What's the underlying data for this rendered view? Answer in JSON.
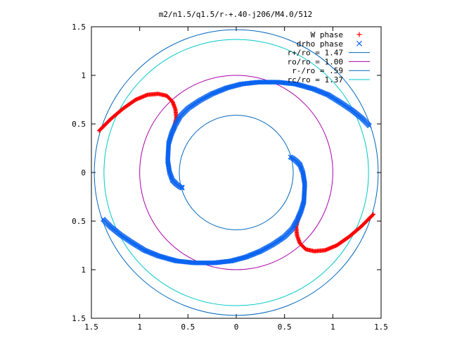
{
  "chart_data": {
    "type": "scatter",
    "title": "m2/n1.5/q1.5/r-+.40-j206/M4.0/512",
    "xlabel": "",
    "ylabel": "",
    "xlim": [
      -1.5,
      1.5
    ],
    "ylim": [
      -1.5,
      1.5
    ],
    "x_ticks": [
      {
        "value": -1.5,
        "label": "1.5"
      },
      {
        "value": -1,
        "label": "1"
      },
      {
        "value": -0.5,
        "label": "0.5"
      },
      {
        "value": 0,
        "label": "0"
      },
      {
        "value": 0.5,
        "label": "0.5"
      },
      {
        "value": 1,
        "label": "1"
      },
      {
        "value": 1.5,
        "label": "1.5"
      }
    ],
    "y_ticks": [
      {
        "value": 1.5,
        "label": "1.5"
      },
      {
        "value": 1,
        "label": "1"
      },
      {
        "value": 0.5,
        "label": "0.5"
      },
      {
        "value": 0,
        "label": "0"
      },
      {
        "value": -0.5,
        "label": "0.5"
      },
      {
        "value": -1,
        "label": "1"
      },
      {
        "value": -1.5,
        "label": "1.5"
      }
    ],
    "grid": false,
    "legend_position": "top-right",
    "series": [
      {
        "name": "W phase",
        "marker": "plus",
        "color": "#ff0000",
        "x": [
          -1.42,
          -1.3,
          -1.17,
          -1.04,
          -0.92,
          -0.81,
          -0.72,
          -0.66,
          -0.63,
          -0.62,
          -0.64,
          -0.65
        ],
        "y": [
          0.43,
          0.55,
          0.66,
          0.75,
          0.8,
          0.81,
          0.79,
          0.73,
          0.65,
          0.56,
          0.48,
          0.44
        ]
      },
      {
        "name": "",
        "marker": "plus",
        "color": "#ff0000",
        "x": [
          1.42,
          1.3,
          1.17,
          1.04,
          0.92,
          0.81,
          0.72,
          0.66,
          0.63,
          0.62,
          0.64,
          0.65
        ],
        "y": [
          -0.43,
          -0.55,
          -0.66,
          -0.75,
          -0.8,
          -0.81,
          -0.79,
          -0.73,
          -0.65,
          -0.56,
          -0.48,
          -0.44
        ]
      },
      {
        "name": "drho phase",
        "marker": "cross",
        "color": "#0a64f0",
        "x": [
          1.38,
          1.3,
          1.2,
          1.08,
          0.95,
          0.8,
          0.62,
          0.43,
          0.23,
          0.05,
          -0.1,
          -0.25,
          -0.38,
          -0.5,
          -0.58,
          -0.63,
          -0.67,
          -0.7,
          -0.71,
          -0.69,
          -0.66,
          -0.62,
          -0.58,
          -0.56,
          -0.56
        ],
        "y": [
          0.48,
          0.56,
          0.64,
          0.72,
          0.8,
          0.86,
          0.91,
          0.93,
          0.93,
          0.91,
          0.87,
          0.81,
          0.74,
          0.66,
          0.58,
          0.49,
          0.4,
          0.3,
          0.12,
          0.0,
          -0.08,
          -0.12,
          -0.15,
          -0.16,
          -0.15
        ]
      },
      {
        "name": "",
        "marker": "cross",
        "color": "#0a64f0",
        "x": [
          -1.38,
          -1.3,
          -1.2,
          -1.08,
          -0.95,
          -0.8,
          -0.62,
          -0.43,
          -0.23,
          -0.05,
          0.1,
          0.25,
          0.38,
          0.5,
          0.58,
          0.63,
          0.67,
          0.7,
          0.71,
          0.69,
          0.66,
          0.62,
          0.58,
          0.56
        ],
        "y": [
          -0.48,
          -0.56,
          -0.64,
          -0.72,
          -0.8,
          -0.86,
          -0.91,
          -0.93,
          -0.93,
          -0.91,
          -0.87,
          -0.81,
          -0.74,
          -0.66,
          -0.58,
          -0.49,
          -0.4,
          -0.3,
          -0.12,
          0.0,
          0.08,
          0.12,
          0.15,
          0.16
        ]
      }
    ],
    "circles": [
      {
        "name": "r+/ro = 1.47",
        "radius": 1.47,
        "color": "#0066bb"
      },
      {
        "name": "ro/ro = 1.00",
        "radius": 1.0,
        "color": "#aa00aa"
      },
      {
        "name": "r-/ro = .59",
        "radius": 0.59,
        "color": "#0066bb"
      },
      {
        "name": "rc/ro = 1.37",
        "radius": 1.37,
        "color": "#00c8c8"
      }
    ]
  }
}
